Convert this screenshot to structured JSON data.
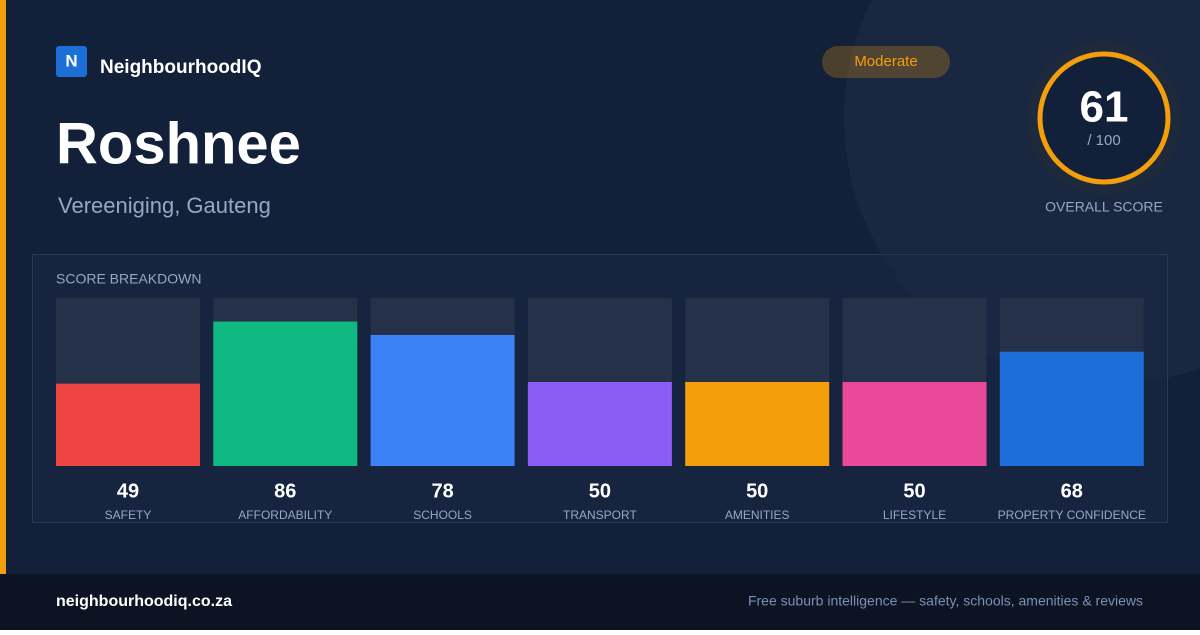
{
  "header": {
    "logo": "N",
    "brand": "NeighbourhoodIQ",
    "rating": "Moderate",
    "suburb": "Roshnee",
    "location": "Vereeniging, Gauteng"
  },
  "score": {
    "value": "61",
    "max": "/ 100",
    "label": "OVERALL SCORE"
  },
  "chart_data": {
    "type": "bar",
    "title": "SCORE BREAKDOWN",
    "categories": [
      "SAFETY",
      "AFFORDABILITY",
      "SCHOOLS",
      "TRANSPORT",
      "AMENITIES",
      "LIFESTYLE",
      "PROPERTY CONFIDENCE"
    ],
    "values": [
      49,
      86,
      78,
      50,
      50,
      50,
      68
    ],
    "colors": [
      "#ef4444",
      "#10b981",
      "#3b82f6",
      "#8b5cf6",
      "#f59e0b",
      "#ec4899",
      "#1d6fd8"
    ],
    "ylim": [
      0,
      100
    ]
  },
  "footer": {
    "site": "neighbourhoodiq.co.za",
    "tagline": "Free suburb intelligence — safety, schools, amenities & reviews"
  }
}
